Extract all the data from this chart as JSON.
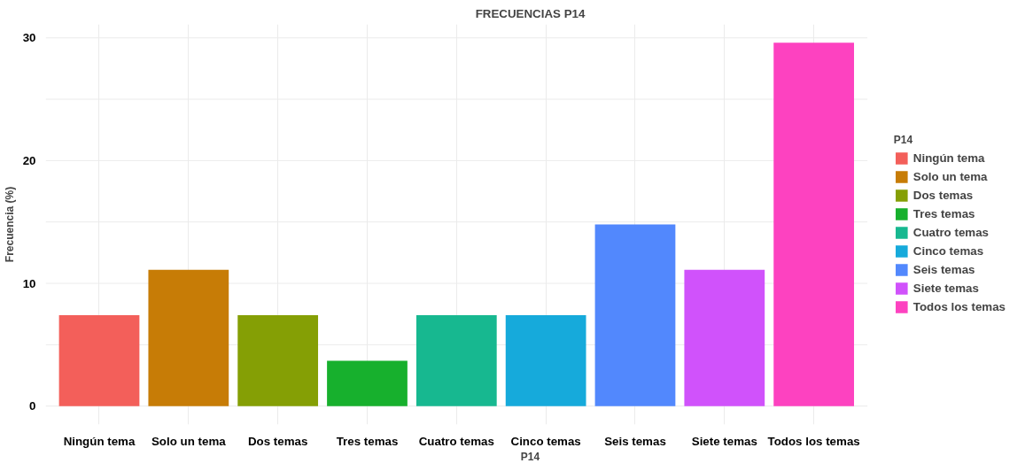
{
  "chart_data": {
    "type": "bar",
    "title": "FRECUENCIAS P14",
    "xlabel": "P14",
    "ylabel": "Frecuencia (%)",
    "legend_title": "P14",
    "categories": [
      "Ningún tema",
      "Solo un tema",
      "Dos temas",
      "Tres temas",
      "Cuatro temas",
      "Cinco temas",
      "Seis temas",
      "Siete temas",
      "Todos los temas"
    ],
    "series": [
      {
        "name": "Ningún tema",
        "color": "#f35f5a",
        "values": [
          7.4,
          null,
          null,
          null,
          null,
          null,
          null,
          null,
          null
        ]
      },
      {
        "name": "Solo un tema",
        "color": "#c77c06",
        "values": [
          null,
          11.1,
          null,
          null,
          null,
          null,
          null,
          null,
          null
        ]
      },
      {
        "name": "Dos temas",
        "color": "#859f05",
        "values": [
          null,
          null,
          7.4,
          null,
          null,
          null,
          null,
          null,
          null
        ]
      },
      {
        "name": "Tres temas",
        "color": "#17b02d",
        "values": [
          null,
          null,
          null,
          3.7,
          null,
          null,
          null,
          null,
          null
        ]
      },
      {
        "name": "Cuatro temas",
        "color": "#17b890",
        "values": [
          null,
          null,
          null,
          null,
          7.4,
          null,
          null,
          null,
          null
        ]
      },
      {
        "name": "Cinco temas",
        "color": "#16aadb",
        "values": [
          null,
          null,
          null,
          null,
          null,
          7.4,
          null,
          null,
          null
        ]
      },
      {
        "name": "Seis temas",
        "color": "#5288fd",
        "values": [
          null,
          null,
          null,
          null,
          null,
          null,
          14.8,
          null,
          null
        ]
      },
      {
        "name": "Siete temas",
        "color": "#d052fb",
        "values": [
          null,
          null,
          null,
          null,
          null,
          null,
          null,
          11.1,
          null
        ]
      },
      {
        "name": "Todos los temas",
        "color": "#fd42c0",
        "values": [
          null,
          null,
          null,
          null,
          null,
          null,
          null,
          null,
          29.6
        ]
      }
    ],
    "ylim": [
      -1.5,
      31.1
    ],
    "yticks": [
      0,
      10,
      20,
      30
    ],
    "grid": true,
    "legend": "right"
  }
}
